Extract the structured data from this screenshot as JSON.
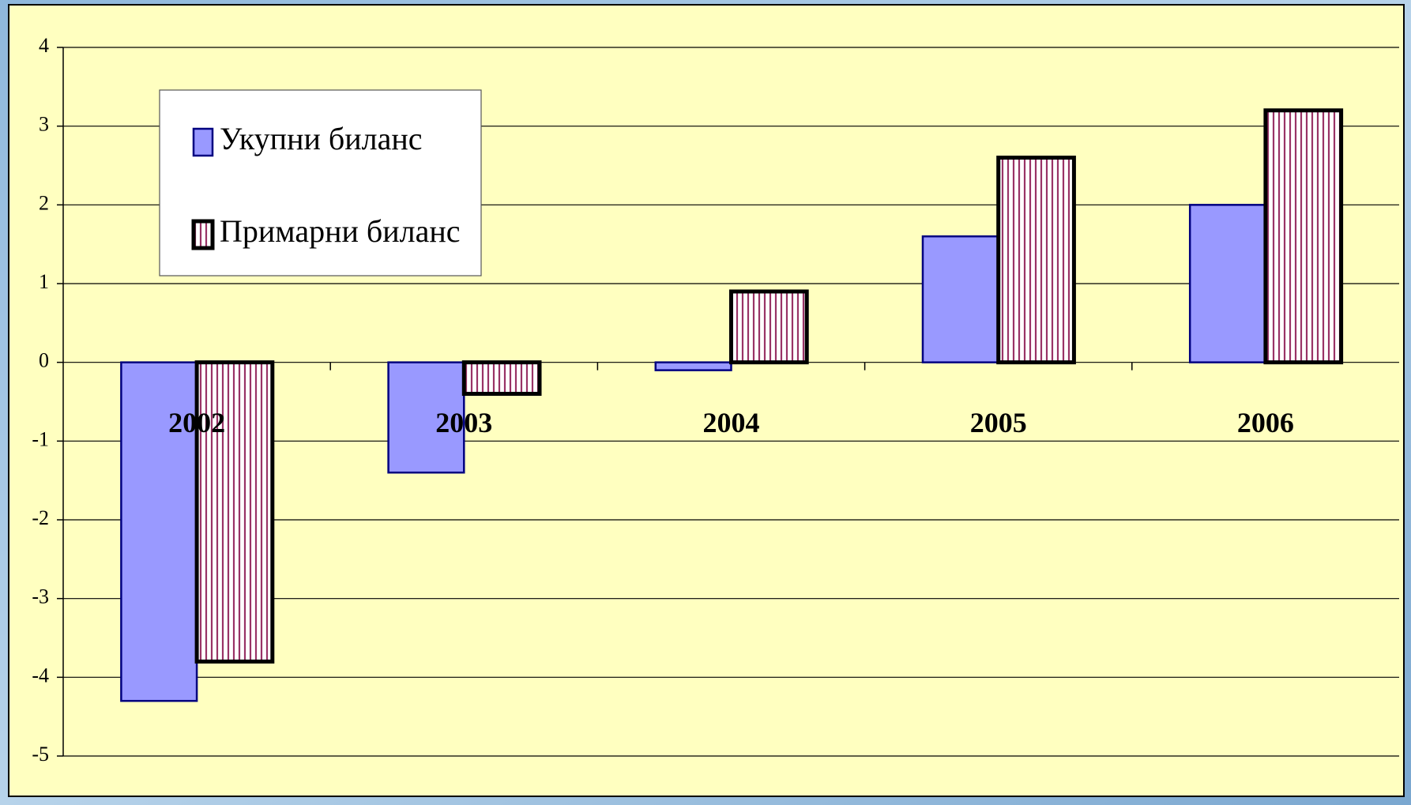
{
  "chart_data": {
    "type": "bar",
    "categories": [
      "2002",
      "2003",
      "2004",
      "2005",
      "2006"
    ],
    "series": [
      {
        "name": "Укупни биланс",
        "color": "#9999ff",
        "values": [
          -4.3,
          -1.4,
          -0.1,
          1.6,
          2.0
        ]
      },
      {
        "name": "Примарни биланс",
        "color": "#993366",
        "values": [
          -3.8,
          -0.4,
          0.9,
          2.6,
          3.2
        ]
      }
    ],
    "ylim": [
      -5,
      4
    ],
    "yticks": [
      -5,
      -4,
      -3,
      -2,
      -1,
      0,
      1,
      2,
      3,
      4
    ],
    "grid": true,
    "legend": "upper left"
  }
}
